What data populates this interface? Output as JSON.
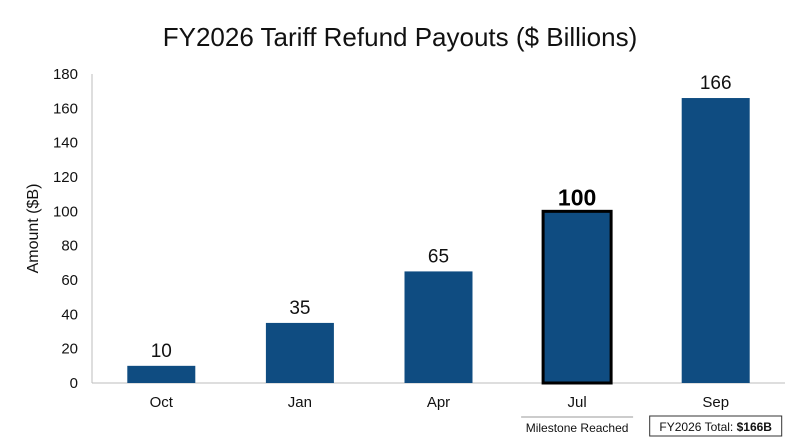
{
  "chart_data": {
    "type": "bar",
    "title": "FY2026 Tariff Refund Payouts ($ Billions)",
    "ylabel": "Amount ($B)",
    "xlabel": "",
    "ylim": [
      0,
      180
    ],
    "yticks": [
      0,
      20,
      40,
      60,
      80,
      100,
      120,
      140,
      160,
      180
    ],
    "categories": [
      "Oct",
      "Jan",
      "Apr",
      "Jul",
      "Sep"
    ],
    "values": [
      10,
      35,
      65,
      100,
      166
    ],
    "data_labels": [
      "10",
      "35",
      "65",
      "100",
      "166"
    ],
    "bar_color": "#0f4c81",
    "highlight": {
      "category": "Jul",
      "outline_color": "#000000",
      "annotation": "Milestone Reached"
    },
    "total_note": {
      "prefix": "FY2026 Total: ",
      "value": "$166B"
    },
    "grid": false,
    "legend": "none"
  }
}
